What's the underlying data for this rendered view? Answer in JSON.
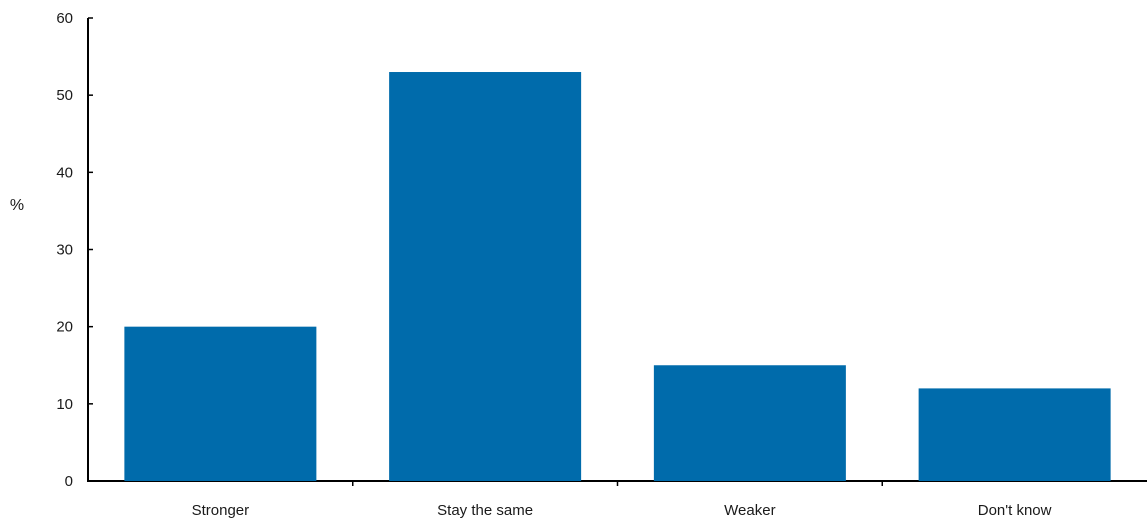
{
  "chart_data": {
    "type": "bar",
    "categories": [
      "Stronger",
      "Stay the same",
      "Weaker",
      "Don't know"
    ],
    "values": [
      20,
      53,
      15,
      12
    ],
    "title": "",
    "xlabel": "",
    "ylabel": "%",
    "ylim": [
      0,
      60
    ],
    "yticks": [
      0,
      10,
      20,
      30,
      40,
      50,
      60
    ],
    "grid": false,
    "legend": "none",
    "bar_color": "#006bab",
    "axis_color": "#000000"
  }
}
